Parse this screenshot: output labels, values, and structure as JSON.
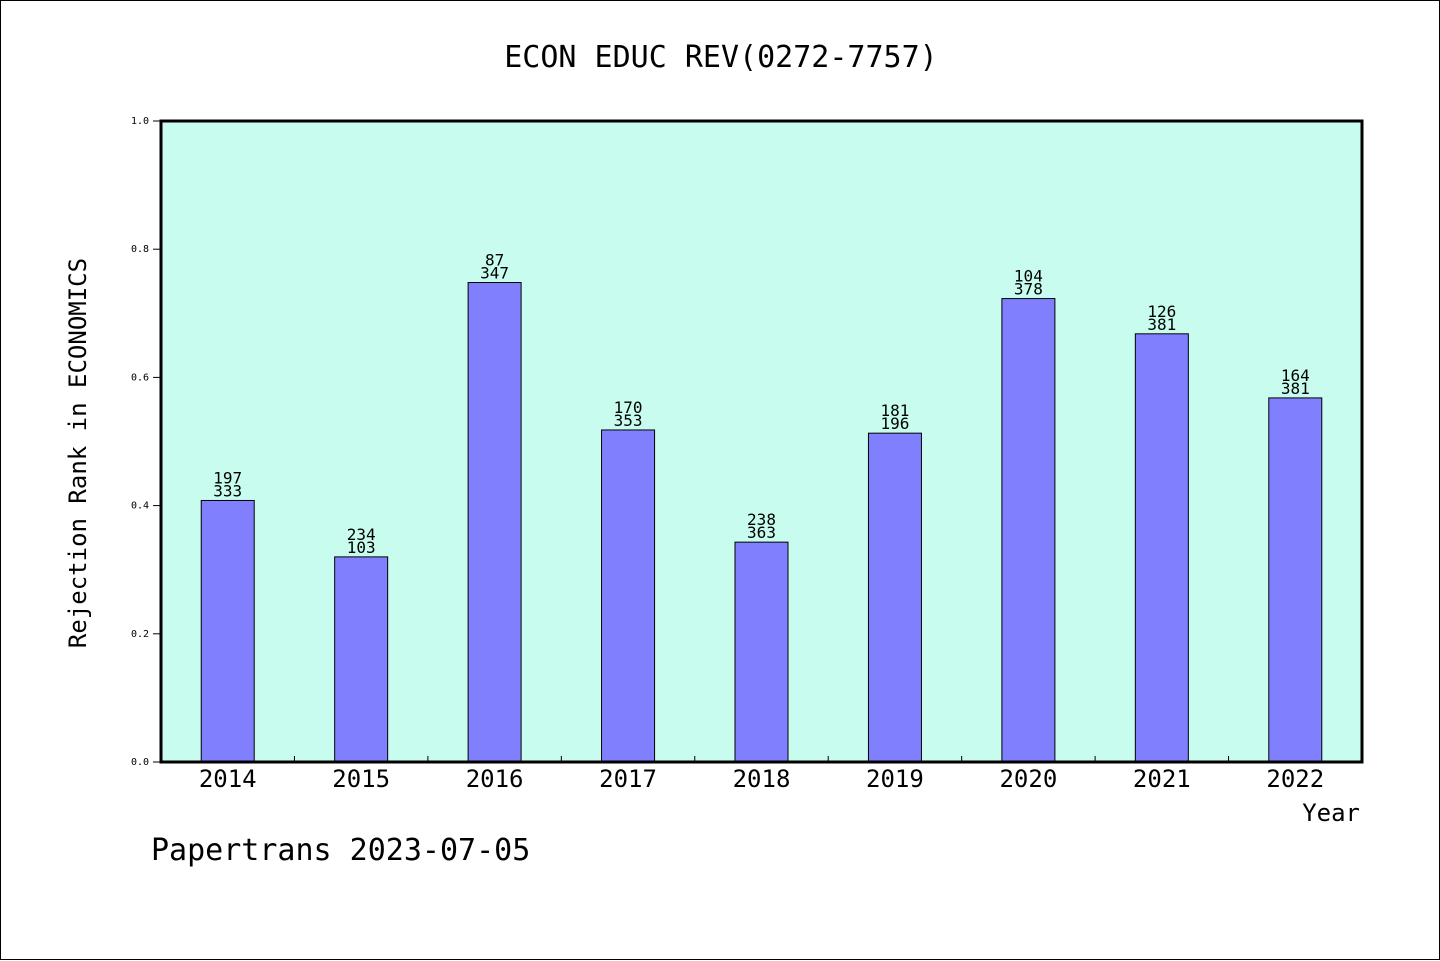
{
  "chart_data": {
    "type": "bar",
    "title": "ECON EDUC REV(0272-7757)",
    "xlabel": "Year",
    "ylabel": "Rejection Rank in ECONOMICS",
    "ylim": [
      0,
      1.0
    ],
    "yticks": [
      "0.0",
      "0.2",
      "0.4",
      "0.6",
      "0.8",
      "1.0"
    ],
    "categories": [
      "2014",
      "2015",
      "2016",
      "2017",
      "2018",
      "2019",
      "2020",
      "2021",
      "2022"
    ],
    "values": [
      0.408,
      0.32,
      0.748,
      0.518,
      0.343,
      0.513,
      0.723,
      0.668,
      0.568
    ],
    "labels_top": [
      "197",
      "234",
      "87",
      "170",
      "238",
      "181",
      "104",
      "126",
      "164"
    ],
    "labels_bottom": [
      "333",
      "103",
      "347",
      "353",
      "363",
      "196",
      "378",
      "381",
      "381"
    ],
    "grid": false,
    "colors": {
      "plot_background": "#c8fcee",
      "bar_fill": "#8080ff",
      "bar_stroke": "#000000"
    }
  },
  "footer": "Papertrans 2023-07-05"
}
